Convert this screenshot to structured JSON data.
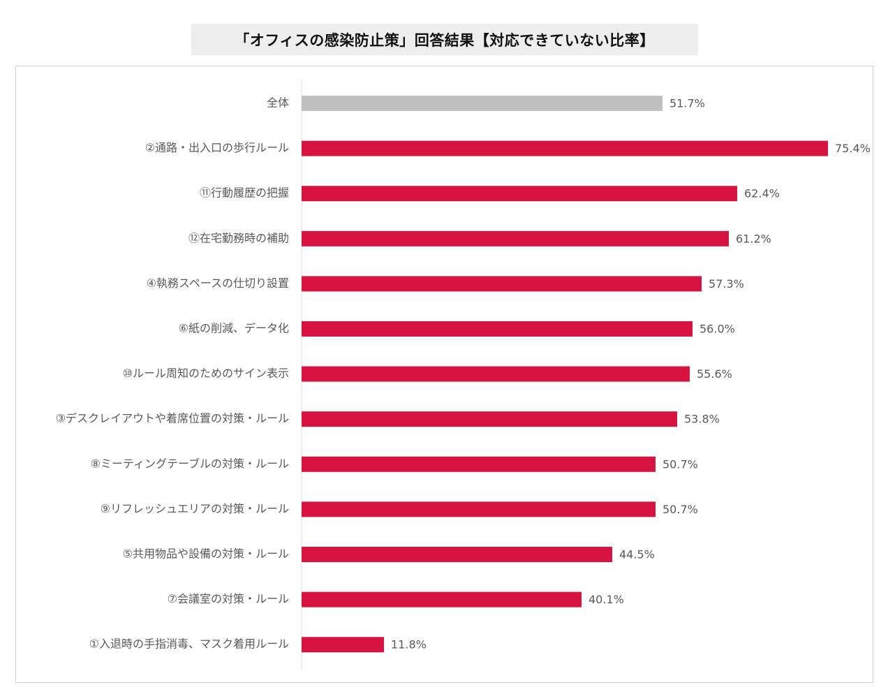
{
  "chart_data": {
    "type": "bar",
    "orientation": "horizontal",
    "title": "「オフィスの感染防止策」回答結果【対応できていない比率】",
    "categories": [
      "全体",
      "②通路・出入口の歩行ルール",
      "⑪行動履歴の把握",
      "⑫在宅勤務時の補助",
      "④執務スペースの仕切り設置",
      "⑥紙の削減、データ化",
      "⑩ルール周知のためのサイン表示",
      "③デスクレイアウトや着席位置の対策・ルール",
      "⑧ミーティングテーブルの対策・ルール",
      "⑨リフレッシュエリアの対策・ルール",
      "⑤共用物品や設備の対策・ルール",
      "⑦会議室の対策・ルール",
      "①入退時の手指消毒、マスク着用ルール"
    ],
    "values": [
      51.7,
      75.4,
      62.4,
      61.2,
      57.3,
      56.0,
      55.6,
      53.8,
      50.7,
      50.7,
      44.5,
      40.1,
      11.8
    ],
    "value_labels": [
      "51.7%",
      "75.4%",
      "62.4%",
      "61.2%",
      "57.3%",
      "56.0%",
      "55.6%",
      "53.8%",
      "50.7%",
      "50.7%",
      "44.5%",
      "40.1%",
      "11.8%"
    ],
    "unit": "%",
    "xlim": [
      0,
      100
    ],
    "grid": false,
    "legend": "none",
    "colors": {
      "highlight": "#bfbfbf",
      "bar": "#d7143f",
      "axis": "#d9d9d9",
      "text": "#595959"
    }
  }
}
